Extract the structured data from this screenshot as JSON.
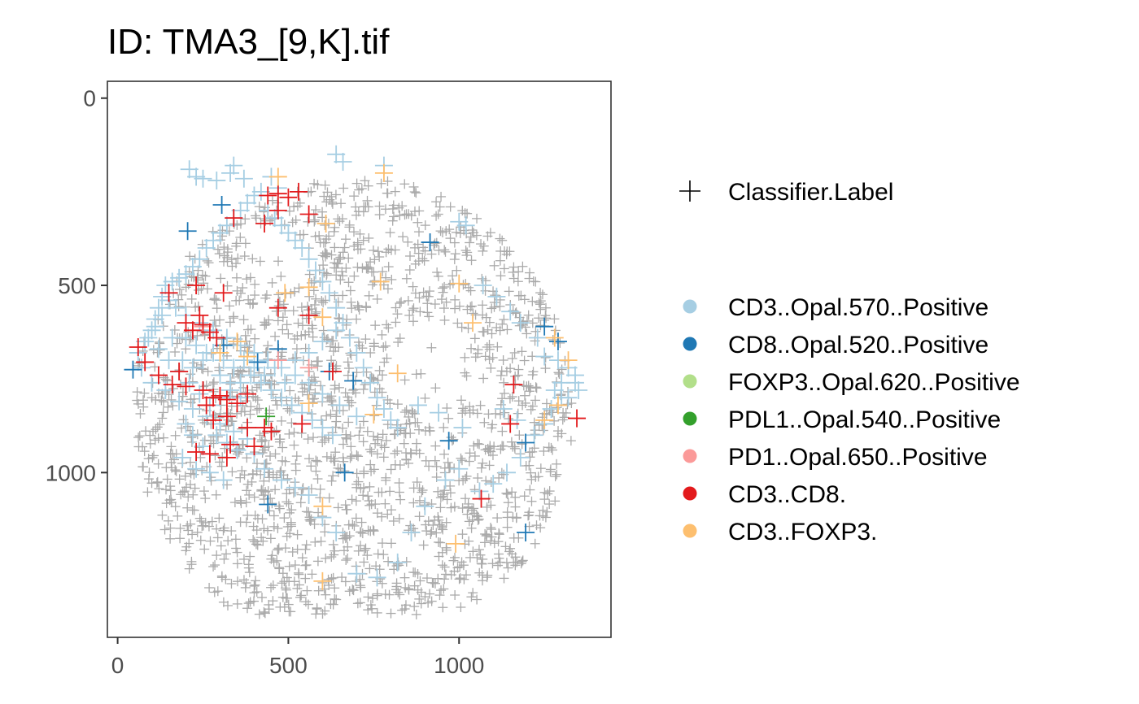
{
  "chart_data": {
    "type": "scatter",
    "title": "ID: TMA3_[9,K].tif",
    "xlabel": "",
    "ylabel": "",
    "xlim": [
      -30,
      1445
    ],
    "ylim": [
      1440,
      -45
    ],
    "y_reversed": true,
    "x_ticks": [
      0,
      500,
      1000
    ],
    "y_ticks": [
      0,
      500,
      1000
    ],
    "x_tick_labels": [
      "0",
      "500",
      "1000"
    ],
    "y_tick_labels": [
      "0",
      "500",
      "1000"
    ],
    "grid": false,
    "legend_placement": "right",
    "shape_legend": {
      "symbol": "+",
      "label": "Classifier.Label"
    },
    "background_points": {
      "color": "#aaaaaa",
      "region_center": [
        690,
        840
      ],
      "region_radius": 630,
      "approx_count": 1800
    },
    "series": [
      {
        "name": "CD3..Opal.570..Positive",
        "color": "#a6cee3",
        "points": [
          [
            210,
            190
          ],
          [
            230,
            210
          ],
          [
            250,
            215
          ],
          [
            290,
            220
          ],
          [
            330,
            200
          ],
          [
            340,
            180
          ],
          [
            370,
            215
          ],
          [
            450,
            210
          ],
          [
            470,
            240
          ],
          [
            640,
            150
          ],
          [
            660,
            170
          ],
          [
            780,
            180
          ],
          [
            1000,
            330
          ],
          [
            1020,
            340
          ],
          [
            1070,
            500
          ],
          [
            1110,
            530
          ],
          [
            1150,
            570
          ],
          [
            1180,
            600
          ],
          [
            1230,
            640
          ],
          [
            1250,
            690
          ],
          [
            1290,
            700
          ],
          [
            1320,
            720
          ],
          [
            1340,
            760
          ],
          [
            1350,
            780
          ],
          [
            1300,
            800
          ],
          [
            1270,
            830
          ],
          [
            1250,
            870
          ],
          [
            1220,
            900
          ],
          [
            1180,
            960
          ],
          [
            1140,
            1000
          ],
          [
            1100,
            1030
          ],
          [
            1060,
            1050
          ],
          [
            1000,
            990
          ],
          [
            960,
            1020
          ],
          [
            900,
            1090
          ],
          [
            860,
            1160
          ],
          [
            820,
            1240
          ],
          [
            760,
            1280
          ],
          [
            700,
            1270
          ],
          [
            640,
            1160
          ],
          [
            600,
            1120
          ],
          [
            560,
            1060
          ],
          [
            520,
            1040
          ],
          [
            480,
            1020
          ],
          [
            430,
            990
          ],
          [
            400,
            950
          ],
          [
            380,
            910
          ],
          [
            340,
            890
          ],
          [
            300,
            870
          ],
          [
            260,
            850
          ],
          [
            220,
            830
          ],
          [
            180,
            810
          ],
          [
            140,
            780
          ],
          [
            100,
            760
          ],
          [
            70,
            720
          ],
          [
            60,
            680
          ],
          [
            80,
            650
          ],
          [
            100,
            620
          ],
          [
            110,
            590
          ],
          [
            120,
            560
          ],
          [
            130,
            530
          ],
          [
            140,
            500
          ],
          [
            160,
            490
          ],
          [
            180,
            480
          ],
          [
            200,
            470
          ],
          [
            220,
            450
          ],
          [
            240,
            430
          ],
          [
            260,
            400
          ],
          [
            280,
            380
          ],
          [
            300,
            360
          ],
          [
            320,
            340
          ],
          [
            340,
            320
          ],
          [
            360,
            300
          ],
          [
            380,
            280
          ],
          [
            400,
            260
          ],
          [
            420,
            250
          ],
          [
            440,
            300
          ],
          [
            460,
            320
          ],
          [
            480,
            340
          ],
          [
            500,
            360
          ],
          [
            520,
            380
          ],
          [
            540,
            400
          ],
          [
            560,
            430
          ],
          [
            580,
            460
          ],
          [
            600,
            490
          ],
          [
            620,
            520
          ],
          [
            640,
            560
          ],
          [
            660,
            600
          ],
          [
            680,
            640
          ],
          [
            700,
            680
          ],
          [
            720,
            720
          ],
          [
            740,
            760
          ],
          [
            760,
            800
          ],
          [
            780,
            830
          ],
          [
            800,
            860
          ],
          [
            820,
            880
          ],
          [
            700,
            850
          ],
          [
            650,
            820
          ],
          [
            600,
            790
          ],
          [
            560,
            760
          ],
          [
            520,
            740
          ],
          [
            480,
            720
          ],
          [
            440,
            700
          ],
          [
            400,
            680
          ],
          [
            360,
            660
          ],
          [
            320,
            640
          ],
          [
            280,
            620
          ],
          [
            240,
            600
          ],
          [
            200,
            580
          ],
          [
            170,
            560
          ],
          [
            150,
            540
          ],
          [
            130,
            580
          ],
          [
            110,
            610
          ],
          [
            90,
            640
          ],
          [
            120,
            670
          ],
          [
            150,
            700
          ],
          [
            180,
            730
          ],
          [
            210,
            760
          ],
          [
            240,
            790
          ],
          [
            270,
            820
          ],
          [
            300,
            800
          ],
          [
            330,
            780
          ],
          [
            360,
            760
          ],
          [
            390,
            740
          ],
          [
            420,
            760
          ],
          [
            450,
            780
          ],
          [
            480,
            800
          ],
          [
            510,
            820
          ],
          [
            540,
            840
          ],
          [
            570,
            860
          ],
          [
            600,
            880
          ],
          [
            630,
            900
          ],
          [
            520,
            700
          ],
          [
            560,
            680
          ],
          [
            600,
            650
          ],
          [
            640,
            620
          ],
          [
            250,
            700
          ],
          [
            280,
            680
          ],
          [
            310,
            700
          ],
          [
            340,
            720
          ],
          [
            370,
            700
          ],
          [
            400,
            720
          ],
          [
            430,
            740
          ],
          [
            460,
            720
          ],
          [
            490,
            760
          ],
          [
            200,
            640
          ],
          [
            230,
            660
          ],
          [
            260,
            680
          ],
          [
            160,
            640
          ],
          [
            190,
            700
          ],
          [
            220,
            720
          ],
          [
            300,
            740
          ],
          [
            330,
            760
          ],
          [
            360,
            800
          ],
          [
            290,
            900
          ],
          [
            320,
            920
          ],
          [
            350,
            940
          ],
          [
            380,
            880
          ],
          [
            250,
            930
          ],
          [
            220,
            900
          ],
          [
            200,
            870
          ],
          [
            190,
            960
          ],
          [
            230,
            990
          ],
          [
            270,
            1000
          ],
          [
            310,
            1020
          ],
          [
            1320,
            800
          ],
          [
            1340,
            740
          ],
          [
            1300,
            760
          ],
          [
            1280,
            780
          ],
          [
            1010,
            880
          ],
          [
            940,
            840
          ],
          [
            880,
            820
          ],
          [
            1130,
            830
          ],
          [
            1170,
            860
          ]
        ]
      },
      {
        "name": "CD8..Opal.520..Positive",
        "color": "#1f78b4",
        "points": [
          [
            305,
            285
          ],
          [
            205,
            355
          ],
          [
            915,
            385
          ],
          [
            1250,
            610
          ],
          [
            1290,
            650
          ],
          [
            45,
            725
          ],
          [
            410,
            705
          ],
          [
            620,
            730
          ],
          [
            690,
            755
          ],
          [
            970,
            915
          ],
          [
            1195,
            920
          ],
          [
            665,
            1000
          ],
          [
            440,
            1085
          ],
          [
            1195,
            1160
          ],
          [
            470,
            670
          ],
          [
            310,
            660
          ]
        ]
      },
      {
        "name": "FOXP3..Opal.620..Positive",
        "color": "#b2df8a",
        "points": []
      },
      {
        "name": "PDL1..Opal.540..Positive",
        "color": "#33a02c",
        "points": [
          [
            435,
            850
          ]
        ]
      },
      {
        "name": "PD1..Opal.650..Positive",
        "color": "#fb9a99",
        "points": [
          [
            250,
            610
          ],
          [
            470,
            700
          ],
          [
            560,
            720
          ]
        ]
      },
      {
        "name": "CD3..CD8.",
        "color": "#e31a1c",
        "points": [
          [
            440,
            260
          ],
          [
            470,
            255
          ],
          [
            500,
            265
          ],
          [
            530,
            250
          ],
          [
            560,
            310
          ],
          [
            430,
            335
          ],
          [
            340,
            320
          ],
          [
            470,
            300
          ],
          [
            150,
            520
          ],
          [
            230,
            500
          ],
          [
            310,
            520
          ],
          [
            470,
            560
          ],
          [
            560,
            580
          ],
          [
            200,
            600
          ],
          [
            220,
            620
          ],
          [
            250,
            605
          ],
          [
            270,
            625
          ],
          [
            290,
            640
          ],
          [
            240,
            580
          ],
          [
            60,
            665
          ],
          [
            80,
            705
          ],
          [
            120,
            740
          ],
          [
            160,
            765
          ],
          [
            200,
            770
          ],
          [
            250,
            780
          ],
          [
            280,
            800
          ],
          [
            300,
            795
          ],
          [
            320,
            805
          ],
          [
            350,
            815
          ],
          [
            380,
            790
          ],
          [
            260,
            820
          ],
          [
            280,
            860
          ],
          [
            320,
            850
          ],
          [
            380,
            880
          ],
          [
            450,
            890
          ],
          [
            540,
            870
          ],
          [
            270,
            950
          ],
          [
            320,
            960
          ],
          [
            230,
            945
          ],
          [
            630,
            730
          ],
          [
            1160,
            765
          ],
          [
            1345,
            855
          ],
          [
            1150,
            870
          ],
          [
            1065,
            1070
          ],
          [
            330,
            925
          ],
          [
            400,
            930
          ],
          [
            430,
            880
          ],
          [
            180,
            730
          ]
        ]
      },
      {
        "name": "CD3..FOXP3.",
        "color": "#fdbf6f",
        "points": [
          [
            470,
            210
          ],
          [
            560,
            505
          ],
          [
            780,
            200
          ],
          [
            610,
            335
          ],
          [
            770,
            490
          ],
          [
            1000,
            495
          ],
          [
            600,
            585
          ],
          [
            1040,
            600
          ],
          [
            1280,
            640
          ],
          [
            560,
            815
          ],
          [
            820,
            735
          ],
          [
            750,
            845
          ],
          [
            1290,
            820
          ],
          [
            1320,
            700
          ],
          [
            600,
            1090
          ],
          [
            990,
            1190
          ],
          [
            600,
            1290
          ],
          [
            490,
            520
          ],
          [
            300,
            680
          ],
          [
            380,
            690
          ],
          [
            350,
            650
          ],
          [
            1250,
            860
          ]
        ]
      }
    ]
  }
}
